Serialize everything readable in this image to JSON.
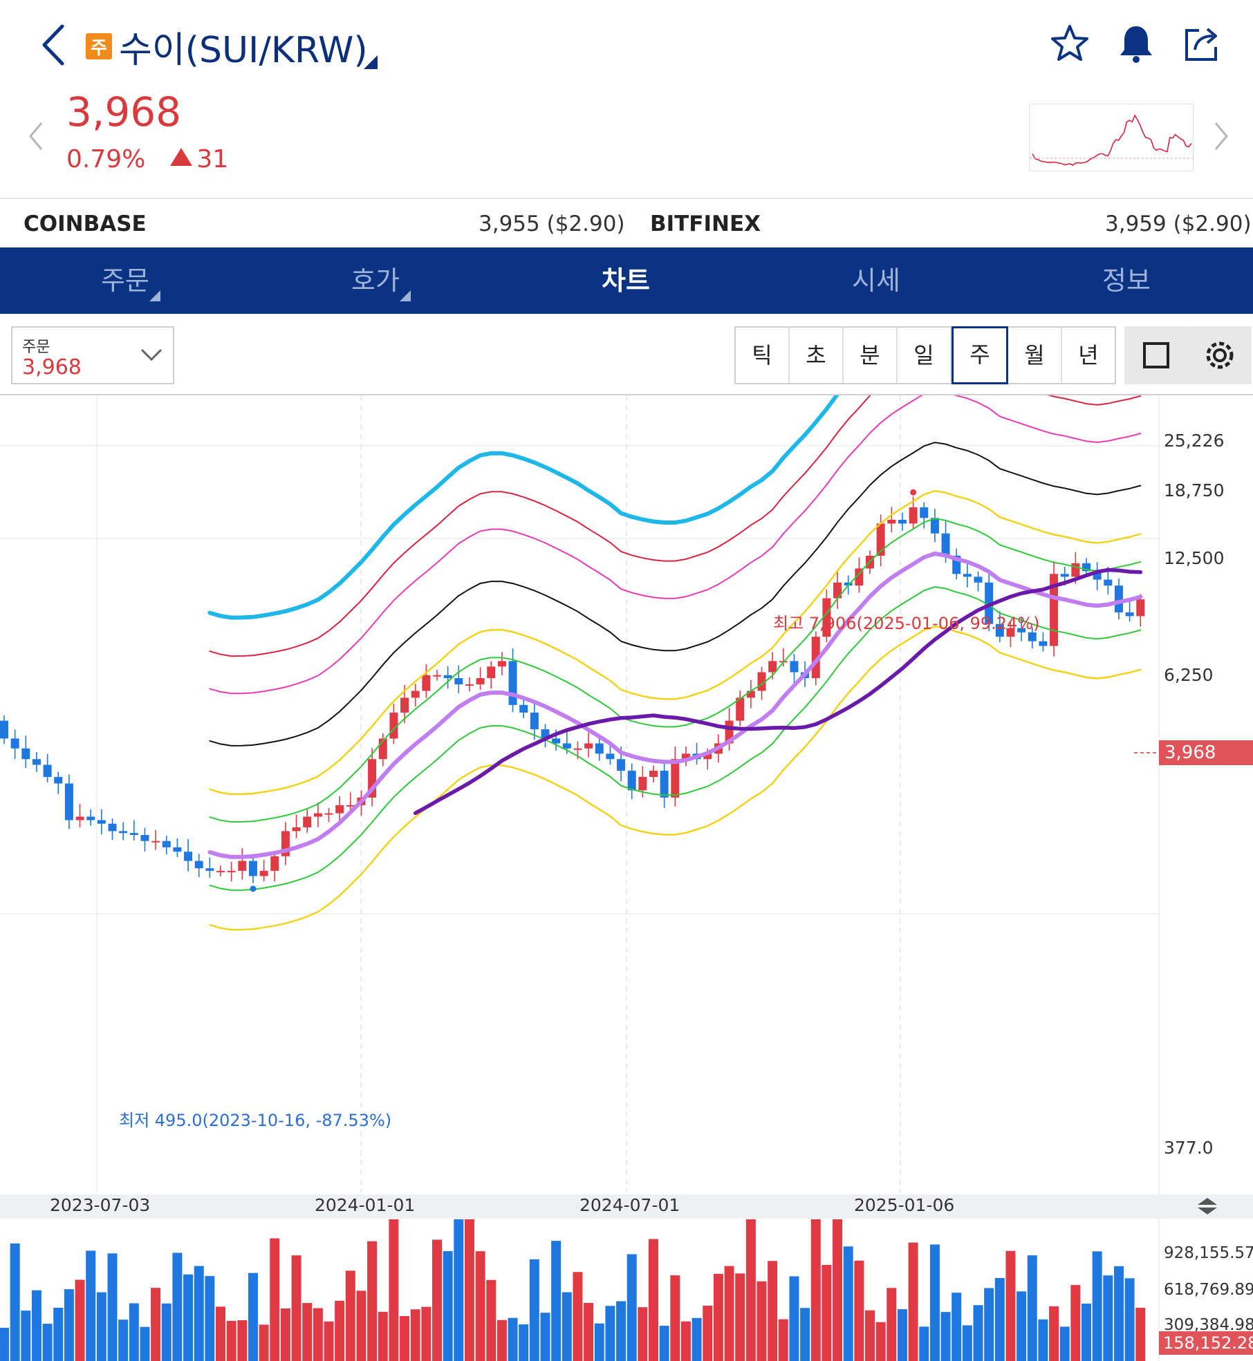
{
  "header": {
    "badge": "주",
    "title": "수이(SUI/KRW)"
  },
  "price": {
    "current": "3,968",
    "change_pct": "0.79%",
    "change_abs": "31"
  },
  "exchanges": [
    {
      "name": "COINBASE",
      "value": "3,955 ($2.90)"
    },
    {
      "name": "BITFINEX",
      "value": "3,959 ($2.90)"
    }
  ],
  "tabs": [
    {
      "label": "주문"
    },
    {
      "label": "호가"
    },
    {
      "label": "차트"
    },
    {
      "label": "시세"
    },
    {
      "label": "정보"
    }
  ],
  "order_select": {
    "label": "주문",
    "value": "3,968"
  },
  "periods": [
    {
      "label": "틱"
    },
    {
      "label": "초"
    },
    {
      "label": "분"
    },
    {
      "label": "일"
    },
    {
      "label": "주",
      "active": true
    },
    {
      "label": "월"
    },
    {
      "label": "년"
    }
  ],
  "colors": {
    "up": "#e03a44",
    "down": "#1f78e0",
    "brand": "#0b3384",
    "env_outer": "#1fb6e8",
    "env_red": "#d9223f",
    "env_pink": "#e83ab4",
    "env_black": "#111111",
    "env_yellow": "#f2d21a",
    "env_green": "#2ec83a",
    "ma_violet": "#c07ef0",
    "ma_purple": "#6a1aa8"
  },
  "icons": [
    "back-chevron-icon",
    "star-icon",
    "bell-icon",
    "share-icon",
    "chevron-left-icon",
    "chevron-right-icon",
    "chevron-down-icon",
    "square-icon",
    "gear-icon",
    "swap-icon"
  ],
  "chart_data": {
    "type": "candlestick",
    "interval": "주",
    "y_scale": "log",
    "y_ticks": [
      "25,226",
      "18,750",
      "12,500",
      "6,250",
      "377.0"
    ],
    "x_ticks": [
      "2023-07-03",
      "2024-01-01",
      "2024-07-01",
      "2025-01-06"
    ],
    "current_price_label": "3,968",
    "annotations": {
      "high": "최고 7,906(2025-01-06, 99.24%)",
      "low": "최저 495.0(2023-10-16, -87.53%)"
    },
    "candles_close_approx": [
      1400,
      1300,
      1200,
      1150,
      1050,
      1000,
      760,
      780,
      760,
      740,
      700,
      690,
      680,
      650,
      650,
      620,
      600,
      560,
      530,
      520,
      520,
      520,
      560,
      500,
      520,
      580,
      700,
      720,
      780,
      800,
      800,
      850,
      850,
      900,
      1200,
      1400,
      1700,
      1900,
      2000,
      2250,
      2250,
      2200,
      2100,
      2100,
      2200,
      2400,
      2500,
      1800,
      1700,
      1500,
      1400,
      1350,
      1300,
      1300,
      1350,
      1250,
      1200,
      1100,
      950,
      1050,
      1100,
      900,
      1200,
      1250,
      1200,
      1250,
      1350,
      1600,
      1900,
      2000,
      2300,
      2500,
      2500,
      2300,
      2200,
      3000,
      4000,
      4500,
      4400,
      5000,
      5500,
      7000,
      7200,
      7000,
      7900,
      7300,
      6500,
      5500,
      4800,
      4700,
      4500,
      3300,
      3000,
      3200,
      3100,
      2900,
      2800,
      4800,
      4700,
      5200,
      4900,
      4600,
      4400,
      3600,
      3500,
      3968
    ],
    "volume_y_ticks": [
      "928,155.573",
      "618,769.890",
      "309,384.982"
    ],
    "current_volume_label": "158,152.286"
  }
}
